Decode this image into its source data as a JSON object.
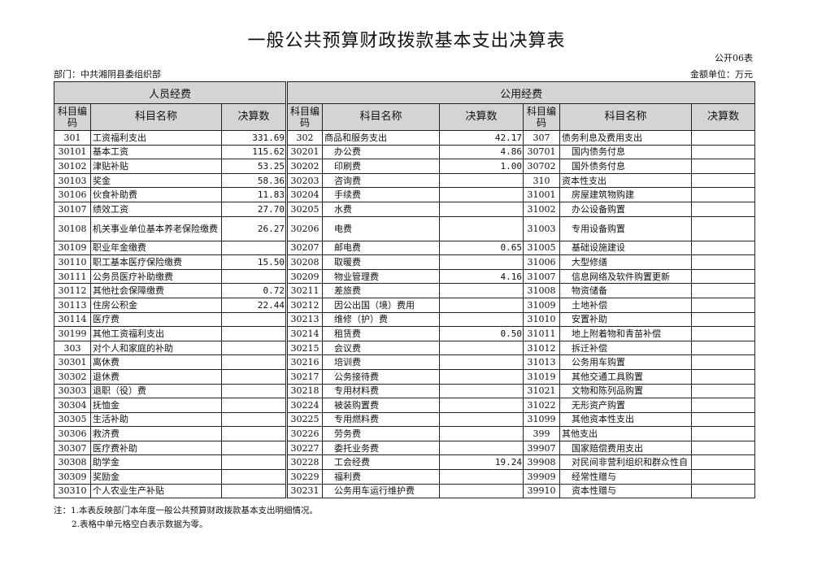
{
  "title": "一般公共预算财政拨款基本支出决算表",
  "form_no": "公开06表",
  "department": "部门：中共湘阴县委组织部",
  "unit": "金额单位：万元",
  "headers": {
    "personnel": "人员经费",
    "public": "公用经费",
    "code": "科目编码",
    "name": "科目名称",
    "amount": "决算数"
  },
  "rows": [
    [
      "301",
      "工资福利支出",
      "331.69",
      "302",
      "商品和服务支出",
      "42.17",
      "307",
      "债务利息及费用支出",
      ""
    ],
    [
      "30101",
      "基本工资",
      "115.62",
      "30201",
      "办公费",
      "4.86",
      "30701",
      "国内债务付息",
      ""
    ],
    [
      "30102",
      "津贴补贴",
      "53.25",
      "30202",
      "印刷费",
      "1.00",
      "30702",
      "国外债务付息",
      ""
    ],
    [
      "30103",
      "奖金",
      "58.36",
      "30203",
      "咨询费",
      "",
      "310",
      "资本性支出",
      ""
    ],
    [
      "30106",
      "伙食补助费",
      "11.83",
      "30204",
      "手续费",
      "",
      "31001",
      "房屋建筑物购建",
      ""
    ],
    [
      "30107",
      "绩效工资",
      "27.70",
      "30205",
      "水费",
      "",
      "31002",
      "办公设备购置",
      ""
    ],
    [
      "30108",
      "机关事业单位基本养老保险缴费",
      "26.27",
      "30206",
      "电费",
      "",
      "31003",
      "专用设备购置",
      ""
    ],
    [
      "30109",
      "职业年金缴费",
      "",
      "30207",
      "邮电费",
      "0.65",
      "31005",
      "基础设施建设",
      ""
    ],
    [
      "30110",
      "职工基本医疗保险缴费",
      "15.50",
      "30208",
      "取暖费",
      "",
      "31006",
      "大型修缮",
      ""
    ],
    [
      "30111",
      "公务员医疗补助缴费",
      "",
      "30209",
      "物业管理费",
      "4.16",
      "31007",
      "信息网络及软件购置更新",
      ""
    ],
    [
      "30112",
      "其他社会保障缴费",
      "0.72",
      "30211",
      "差旅费",
      "",
      "31008",
      "物资储备",
      ""
    ],
    [
      "30113",
      "住房公积金",
      "22.44",
      "30212",
      "因公出国（境）费用",
      "",
      "31009",
      "土地补偿",
      ""
    ],
    [
      "30114",
      "医疗费",
      "",
      "30213",
      "维修（护）费",
      "",
      "31010",
      "安置补助",
      ""
    ],
    [
      "30199",
      "其他工资福利支出",
      "",
      "30214",
      "租赁费",
      "0.50",
      "31011",
      "地上附着物和青苗补偿",
      ""
    ],
    [
      "303",
      "对个人和家庭的补助",
      "",
      "30215",
      "会议费",
      "",
      "31012",
      "拆迁补偿",
      ""
    ],
    [
      "30301",
      "离休费",
      "",
      "30216",
      "培训费",
      "",
      "31013",
      "公务用车购置",
      ""
    ],
    [
      "30302",
      "退休费",
      "",
      "30217",
      "公务接待费",
      "",
      "31019",
      "其他交通工具购置",
      ""
    ],
    [
      "30303",
      "退职（役）费",
      "",
      "30218",
      "专用材料费",
      "",
      "31021",
      "文物和陈列品购置",
      ""
    ],
    [
      "30304",
      "抚恤金",
      "",
      "30224",
      "被装购置费",
      "",
      "31022",
      "无形资产购置",
      ""
    ],
    [
      "30305",
      "生活补助",
      "",
      "30225",
      "专用燃料费",
      "",
      "31099",
      "其他资本性支出",
      ""
    ],
    [
      "30306",
      "救济费",
      "",
      "30226",
      "劳务费",
      "",
      "399",
      "其他支出",
      ""
    ],
    [
      "30307",
      "医疗费补助",
      "",
      "30227",
      "委托业务费",
      "",
      "39907",
      "国家赔偿费用支出",
      ""
    ],
    [
      "30308",
      "助学金",
      "",
      "30228",
      "工会经费",
      "19.24",
      "39908",
      "对民间非营利组织和群众性自",
      ""
    ],
    [
      "30309",
      "奖励金",
      "",
      "30229",
      "福利费",
      "",
      "39909",
      "经常性赠与",
      ""
    ],
    [
      "30310",
      "个人农业生产补贴",
      "",
      "30231",
      "公务用车运行维护费",
      "",
      "39910",
      "资本性赠与",
      ""
    ]
  ],
  "notes": [
    "注：1.本表反映部门本年度一般公共预算财政拨款基本支出明细情况。",
    "2.表格中单元格空白表示数据为零。"
  ]
}
